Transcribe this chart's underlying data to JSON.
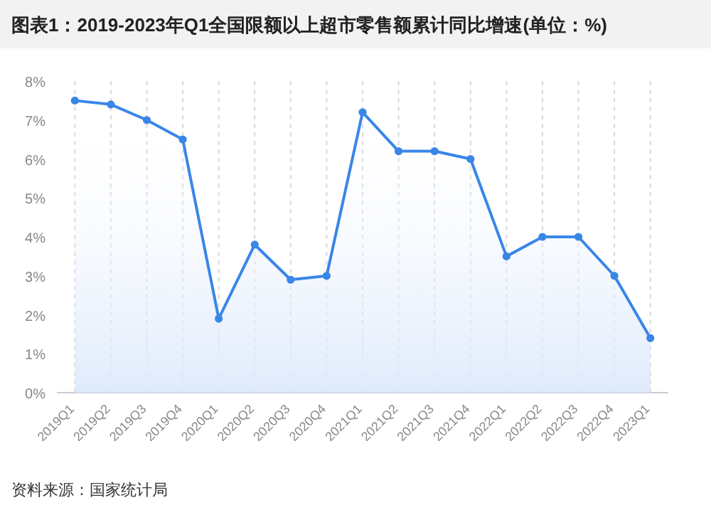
{
  "chart_data": {
    "type": "area",
    "title": "图表1：2019-2023年Q1全国限额以上超市零售额累计同比增速(单位：%)",
    "categories": [
      "2019Q1",
      "2019Q2",
      "2019Q3",
      "2019Q4",
      "2020Q1",
      "2020Q2",
      "2020Q3",
      "2020Q4",
      "2021Q1",
      "2021Q2",
      "2021Q3",
      "2021Q4",
      "2022Q1",
      "2022Q2",
      "2022Q3",
      "2022Q4",
      "2023Q1"
    ],
    "series": [
      {
        "color": "#3a86e8",
        "values": [
          7.5,
          7.4,
          7.0,
          6.5,
          1.9,
          3.8,
          2.9,
          3.0,
          7.2,
          6.2,
          6.2,
          6.0,
          3.5,
          4.0,
          4.0,
          3.0,
          1.4
        ]
      }
    ],
    "ylim": [
      0,
      8
    ],
    "yticks": [
      {
        "value": 0,
        "label": "0%"
      },
      {
        "value": 1,
        "label": "1%"
      },
      {
        "value": 2,
        "label": "2%"
      },
      {
        "value": 3,
        "label": "3%"
      },
      {
        "value": 4,
        "label": "4%"
      },
      {
        "value": 5,
        "label": "5%"
      },
      {
        "value": 6,
        "label": "6%"
      },
      {
        "value": 7,
        "label": "7%"
      },
      {
        "value": 8,
        "label": "8%"
      }
    ],
    "grid": "x",
    "marker": "circle",
    "annotations": [
      "资料来源：国家统计局"
    ]
  }
}
